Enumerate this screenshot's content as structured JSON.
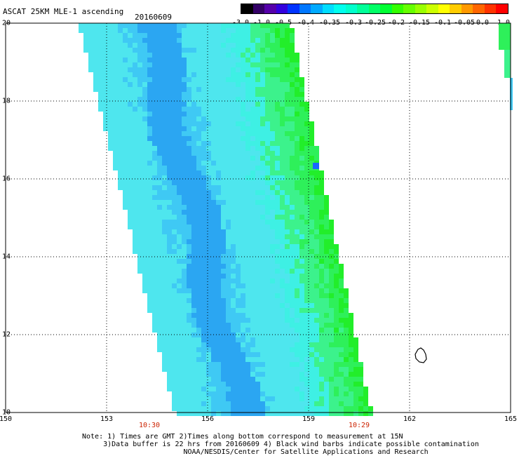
{
  "header": {
    "title": "ASCAT 25KM MLE-1 ascending",
    "date": "20160609"
  },
  "colorbar": {
    "labels": [
      "-3.0",
      "-1.0",
      "-0.5",
      "-0.4",
      "-0.35",
      "-0.3",
      "-0.25",
      "-0.2",
      "-0.15",
      "-0.1",
      "-0.05",
      "0.0",
      "1.0"
    ],
    "colors": [
      "#000000",
      "#330066",
      "#5500aa",
      "#3300dd",
      "#0033ff",
      "#0077ff",
      "#00aaff",
      "#00ddff",
      "#00ffee",
      "#00ffcc",
      "#00ff99",
      "#00ff66",
      "#00ff33",
      "#33ff00",
      "#66ff00",
      "#99ff00",
      "#ccff00",
      "#ffff00",
      "#ffcc00",
      "#ff9900",
      "#ff6600",
      "#ff3300",
      "#ff0000"
    ]
  },
  "axes": {
    "lon_labels": [
      "150",
      "153",
      "156",
      "159",
      "162",
      "165"
    ],
    "lat_labels": [
      "20",
      "18",
      "16",
      "14",
      "12",
      "10"
    ],
    "lon_range": [
      150,
      165
    ],
    "lat_range": [
      10,
      20
    ]
  },
  "times": {
    "left": "10:30",
    "right": "10:29"
  },
  "notes": {
    "line1": "Note: 1) Times are GMT 2)Times along bottom correspond to measurement at 15N",
    "line2": "     3)Data buffer is 22 hrs from 20160609 4) Black wind barbs indicate possible contamination",
    "line3": "                        NOAA/NESDIS/Center for Satellite Applications and Research"
  },
  "map_colors": {
    "deep": "#2ba6f2",
    "mid": "#3fc9f4",
    "light": "#4ee6ee",
    "cyan": "#3ef0e4",
    "green1": "#3cf28c",
    "green2": "#2ef05a",
    "green3": "#22ee2a",
    "outlier": "#1a66ff"
  }
}
